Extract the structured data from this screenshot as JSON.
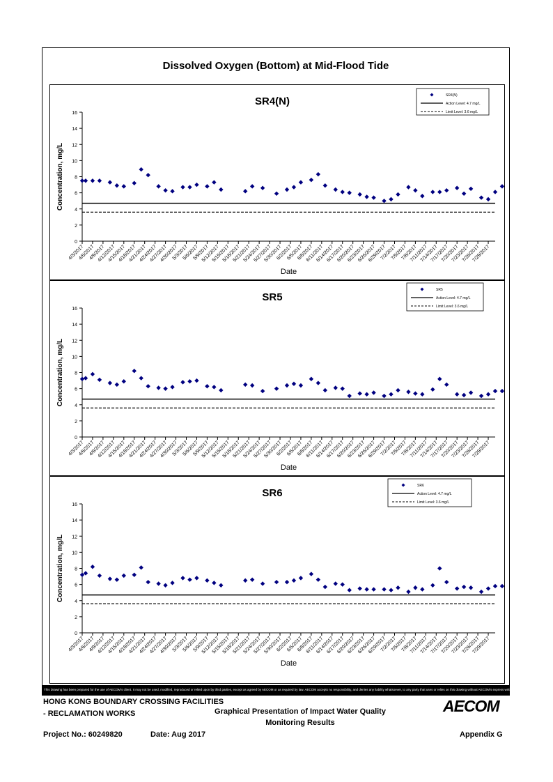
{
  "page": {
    "title": "Dissolved Oxygen (Bottom) at Mid-Flood Tide"
  },
  "footer": {
    "disclaimer": "This Drawing has been prepared for the use of AECOM's client. It may not be used, modified, reproduced or relied upon by third parties, except as agreed by AECOM or as required by law. AECOM accepts no responsibility, and denies any liability whatsoever, to any party that uses or relies on this drawing without AECOM's express written consent.",
    "project_line1": "HONG KONG BOUNDARY CROSSING FACILITIES",
    "project_line2": "- RECLAMATION WORKS",
    "description_line1": "Graphical Presentation of Impact Water Quality",
    "description_line2": "Monitoring Results",
    "project_no": "Project No.: 60249820",
    "date": "Date: Aug 2017",
    "appendix": "Appendix G",
    "logo": "AECOM"
  },
  "chart_data": [
    {
      "type": "scatter",
      "title": "SR4(N)",
      "xlabel": "Date",
      "ylabel": "Concentration, mg/L",
      "ylim": [
        0,
        16
      ],
      "yticks": [
        0,
        2,
        4,
        6,
        8,
        10,
        12,
        14,
        16
      ],
      "xlim": [
        "4/3/2017",
        "7/31/2017"
      ],
      "xticks": [
        "4/3/2017",
        "4/6/2017",
        "4/9/2017",
        "4/12/2017",
        "4/15/2017",
        "4/18/2017",
        "4/21/2017",
        "4/24/2017",
        "4/27/2017",
        "4/30/2017",
        "5/3/2017",
        "5/6/2017",
        "5/9/2017",
        "5/12/2017",
        "5/15/2017",
        "5/18/2017",
        "5/21/2017",
        "5/24/2017",
        "5/27/2017",
        "5/30/2017",
        "6/2/2017",
        "6/5/2017",
        "6/8/2017",
        "6/11/2017",
        "6/14/2017",
        "6/17/2017",
        "6/20/2017",
        "6/23/2017",
        "6/26/2017",
        "6/29/2017",
        "7/2/2017",
        "7/5/2017",
        "7/8/2017",
        "7/11/2017",
        "7/14/2017",
        "7/17/2017",
        "7/20/2017",
        "7/23/2017",
        "7/26/2017",
        "7/29/2017"
      ],
      "grid": false,
      "legend": "top-right",
      "legend_entries": [
        "SR4(N)",
        "Action Level: 4.7 mg/L",
        "Limit Level: 3.6 mg/L"
      ],
      "action_level": 4.7,
      "limit_level": 3.6,
      "color": "#000080",
      "series": [
        {
          "name": "SR4(N)",
          "x": [
            "4/3/2017",
            "4/4/2017",
            "4/6/2017",
            "4/8/2017",
            "4/11/2017",
            "4/13/2017",
            "4/15/2017",
            "4/18/2017",
            "4/20/2017",
            "4/22/2017",
            "4/25/2017",
            "4/27/2017",
            "4/29/2017",
            "5/2/2017",
            "5/4/2017",
            "5/6/2017",
            "5/9/2017",
            "5/11/2017",
            "5/13/2017",
            "5/20/2017",
            "5/22/2017",
            "5/25/2017",
            "5/29/2017",
            "6/1/2017",
            "6/3/2017",
            "6/5/2017",
            "6/8/2017",
            "6/10/2017",
            "6/12/2017",
            "6/15/2017",
            "6/17/2017",
            "6/19/2017",
            "6/22/2017",
            "6/24/2017",
            "6/26/2017",
            "6/29/2017",
            "7/1/2017",
            "7/3/2017",
            "7/6/2017",
            "7/8/2017",
            "7/10/2017",
            "7/13/2017",
            "7/15/2017",
            "7/17/2017",
            "7/20/2017",
            "7/22/2017",
            "7/24/2017",
            "7/27/2017",
            "7/29/2017",
            "7/31/2017",
            "8/2/2017"
          ],
          "y": [
            7.5,
            7.5,
            7.5,
            7.5,
            7.3,
            6.9,
            6.8,
            7.2,
            8.9,
            8.2,
            6.8,
            6.3,
            6.2,
            6.7,
            6.7,
            7.0,
            6.8,
            7.3,
            6.4,
            6.2,
            6.8,
            6.6,
            5.9,
            6.4,
            6.7,
            7.3,
            7.6,
            8.3,
            6.9,
            6.4,
            6.1,
            6.0,
            5.8,
            5.5,
            5.4,
            5.0,
            5.2,
            5.8,
            6.7,
            6.3,
            5.6,
            6.1,
            6.1,
            6.3,
            6.6,
            5.9,
            6.5,
            5.4,
            5.2,
            6.1,
            6.8
          ]
        }
      ]
    },
    {
      "type": "scatter",
      "title": "SR5",
      "xlabel": "Date",
      "ylabel": "Concentration, mg/L",
      "ylim": [
        0,
        16
      ],
      "yticks": [
        0,
        2,
        4,
        6,
        8,
        10,
        12,
        14,
        16
      ],
      "xlim": [
        "4/3/2017",
        "7/31/2017"
      ],
      "xticks": [
        "4/3/2017",
        "4/6/2017",
        "4/9/2017",
        "4/12/2017",
        "4/15/2017",
        "4/18/2017",
        "4/21/2017",
        "4/24/2017",
        "4/27/2017",
        "4/30/2017",
        "5/3/2017",
        "5/6/2017",
        "5/9/2017",
        "5/12/2017",
        "5/15/2017",
        "5/18/2017",
        "5/21/2017",
        "5/24/2017",
        "5/27/2017",
        "5/30/2017",
        "6/2/2017",
        "6/5/2017",
        "6/8/2017",
        "6/11/2017",
        "6/14/2017",
        "6/17/2017",
        "6/20/2017",
        "6/23/2017",
        "6/26/2017",
        "6/29/2017",
        "7/2/2017",
        "7/5/2017",
        "7/8/2017",
        "7/11/2017",
        "7/14/2017",
        "7/17/2017",
        "7/20/2017",
        "7/23/2017",
        "7/26/2017",
        "7/29/2017"
      ],
      "grid": false,
      "legend": "top-right",
      "legend_entries": [
        "SR5",
        "Action Level: 4.7 mg/L",
        "Limit Level: 3.6 mg/L"
      ],
      "action_level": 4.7,
      "limit_level": 3.6,
      "color": "#000080",
      "series": [
        {
          "name": "SR5",
          "x": [
            "4/3/2017",
            "4/4/2017",
            "4/6/2017",
            "4/8/2017",
            "4/11/2017",
            "4/13/2017",
            "4/15/2017",
            "4/18/2017",
            "4/20/2017",
            "4/22/2017",
            "4/25/2017",
            "4/27/2017",
            "4/29/2017",
            "5/2/2017",
            "5/4/2017",
            "5/6/2017",
            "5/9/2017",
            "5/11/2017",
            "5/13/2017",
            "5/20/2017",
            "5/22/2017",
            "5/25/2017",
            "5/29/2017",
            "6/1/2017",
            "6/3/2017",
            "6/5/2017",
            "6/8/2017",
            "6/10/2017",
            "6/12/2017",
            "6/15/2017",
            "6/17/2017",
            "6/19/2017",
            "6/22/2017",
            "6/24/2017",
            "6/26/2017",
            "6/29/2017",
            "7/1/2017",
            "7/3/2017",
            "7/6/2017",
            "7/8/2017",
            "7/10/2017",
            "7/13/2017",
            "7/15/2017",
            "7/17/2017",
            "7/20/2017",
            "7/22/2017",
            "7/24/2017",
            "7/27/2017",
            "7/29/2017",
            "7/31/2017",
            "8/2/2017"
          ],
          "y": [
            7.2,
            7.3,
            7.8,
            7.1,
            6.7,
            6.5,
            6.9,
            8.2,
            7.3,
            6.3,
            6.1,
            6.0,
            6.2,
            6.8,
            6.9,
            7.0,
            6.3,
            6.2,
            5.8,
            6.5,
            6.4,
            5.7,
            6.0,
            6.4,
            6.6,
            6.4,
            7.2,
            6.7,
            5.8,
            6.1,
            6.0,
            5.1,
            5.4,
            5.3,
            5.5,
            5.1,
            5.3,
            5.8,
            5.6,
            5.4,
            5.3,
            5.9,
            7.2,
            6.5,
            5.3,
            5.2,
            5.5,
            5.1,
            5.3,
            5.7,
            5.7
          ]
        }
      ]
    },
    {
      "type": "scatter",
      "title": "SR6",
      "xlabel": "Date",
      "ylabel": "Concentration, mg/L",
      "ylim": [
        0,
        16
      ],
      "yticks": [
        0,
        2,
        4,
        6,
        8,
        10,
        12,
        14,
        16
      ],
      "xlim": [
        "4/3/2017",
        "7/31/2017"
      ],
      "xticks": [
        "4/3/2017",
        "4/6/2017",
        "4/9/2017",
        "4/12/2017",
        "4/15/2017",
        "4/18/2017",
        "4/21/2017",
        "4/24/2017",
        "4/27/2017",
        "4/30/2017",
        "5/3/2017",
        "5/6/2017",
        "5/9/2017",
        "5/12/2017",
        "5/15/2017",
        "5/18/2017",
        "5/21/2017",
        "5/24/2017",
        "5/27/2017",
        "5/30/2017",
        "6/2/2017",
        "6/5/2017",
        "6/8/2017",
        "6/11/2017",
        "6/14/2017",
        "6/17/2017",
        "6/20/2017",
        "6/23/2017",
        "6/26/2017",
        "6/29/2017",
        "7/2/2017",
        "7/5/2017",
        "7/8/2017",
        "7/11/2017",
        "7/14/2017",
        "7/17/2017",
        "7/20/2017",
        "7/23/2017",
        "7/26/2017",
        "7/29/2017"
      ],
      "grid": false,
      "legend": "top-right",
      "legend_entries": [
        "SR6",
        "Action Level: 4.7 mg/L",
        "Limit Level: 3.6 mg/L"
      ],
      "action_level": 4.7,
      "limit_level": 3.6,
      "color": "#000080",
      "series": [
        {
          "name": "SR6",
          "x": [
            "4/3/2017",
            "4/4/2017",
            "4/6/2017",
            "4/8/2017",
            "4/11/2017",
            "4/13/2017",
            "4/15/2017",
            "4/18/2017",
            "4/20/2017",
            "4/22/2017",
            "4/25/2017",
            "4/27/2017",
            "4/29/2017",
            "5/2/2017",
            "5/4/2017",
            "5/6/2017",
            "5/9/2017",
            "5/11/2017",
            "5/13/2017",
            "5/20/2017",
            "5/22/2017",
            "5/25/2017",
            "5/29/2017",
            "6/1/2017",
            "6/3/2017",
            "6/5/2017",
            "6/8/2017",
            "6/10/2017",
            "6/12/2017",
            "6/15/2017",
            "6/17/2017",
            "6/19/2017",
            "6/22/2017",
            "6/24/2017",
            "6/26/2017",
            "6/29/2017",
            "7/1/2017",
            "7/3/2017",
            "7/6/2017",
            "7/8/2017",
            "7/10/2017",
            "7/13/2017",
            "7/15/2017",
            "7/17/2017",
            "7/20/2017",
            "7/22/2017",
            "7/24/2017",
            "7/27/2017",
            "7/29/2017",
            "7/31/2017",
            "8/2/2017"
          ],
          "y": [
            7.2,
            7.4,
            8.2,
            7.1,
            6.7,
            6.6,
            7.1,
            7.2,
            8.1,
            6.3,
            6.1,
            5.9,
            6.2,
            6.8,
            6.6,
            6.8,
            6.5,
            6.2,
            5.9,
            6.5,
            6.6,
            6.1,
            6.3,
            6.3,
            6.5,
            6.8,
            7.3,
            6.6,
            5.7,
            6.1,
            6.0,
            5.3,
            5.5,
            5.4,
            5.4,
            5.4,
            5.3,
            5.6,
            5.1,
            5.6,
            5.4,
            5.9,
            8.0,
            6.3,
            5.5,
            5.7,
            5.6,
            5.1,
            5.5,
            5.8,
            5.8
          ]
        }
      ]
    }
  ]
}
